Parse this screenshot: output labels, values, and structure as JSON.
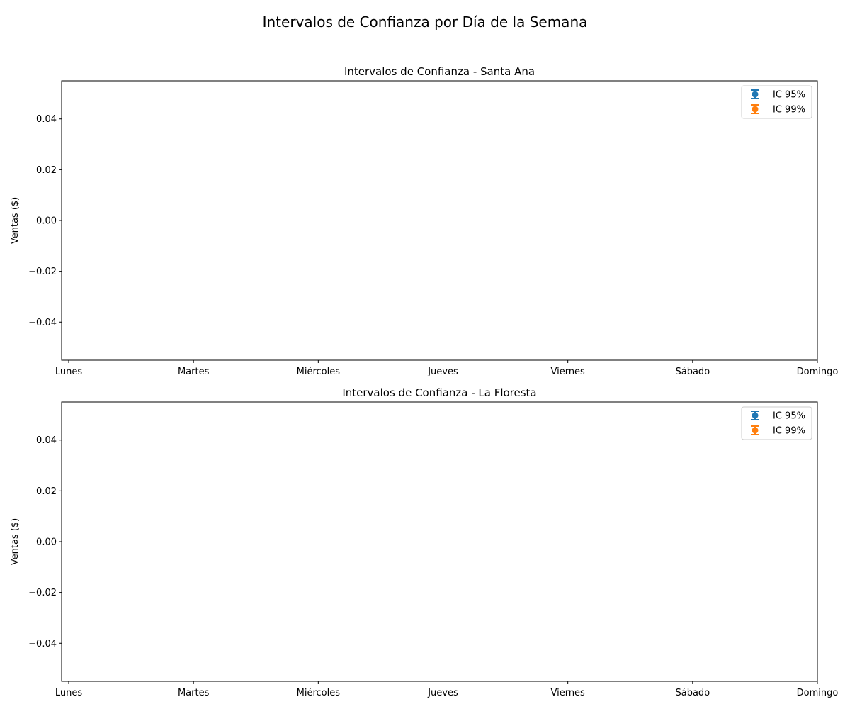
{
  "figure": {
    "suptitle": "Intervalos de Confianza por Día de la Semana"
  },
  "chart_data": [
    {
      "type": "scatter",
      "title": "Intervalos de Confianza - Santa Ana",
      "xlabel": "",
      "ylabel": "Ventas ($)",
      "categories": [
        "Lunes",
        "Martes",
        "Miércoles",
        "Jueves",
        "Viernes",
        "Sábado",
        "Domingo"
      ],
      "ylim": [
        -0.055,
        0.055
      ],
      "yticks": [
        -0.04,
        -0.02,
        0.0,
        0.02,
        0.04
      ],
      "ytick_labels": [
        "−0.04",
        "−0.02",
        "0.00",
        "0.02",
        "0.04"
      ],
      "grid": false,
      "legend_position": "top-right",
      "series": [
        {
          "name": "IC 95%",
          "color": "#1f77b4",
          "marker": "errorbar-circle",
          "values": []
        },
        {
          "name": "IC 99%",
          "color": "#ff7f0e",
          "marker": "errorbar-circle",
          "values": []
        }
      ]
    },
    {
      "type": "scatter",
      "title": "Intervalos de Confianza - La Floresta",
      "xlabel": "",
      "ylabel": "Ventas ($)",
      "categories": [
        "Lunes",
        "Martes",
        "Miércoles",
        "Jueves",
        "Viernes",
        "Sábado",
        "Domingo"
      ],
      "ylim": [
        -0.055,
        0.055
      ],
      "yticks": [
        -0.04,
        -0.02,
        0.0,
        0.02,
        0.04
      ],
      "ytick_labels": [
        "−0.04",
        "−0.02",
        "0.00",
        "0.02",
        "0.04"
      ],
      "grid": false,
      "legend_position": "top-right",
      "series": [
        {
          "name": "IC 95%",
          "color": "#1f77b4",
          "marker": "errorbar-circle",
          "values": []
        },
        {
          "name": "IC 99%",
          "color": "#ff7f0e",
          "marker": "errorbar-circle",
          "values": []
        }
      ]
    }
  ]
}
